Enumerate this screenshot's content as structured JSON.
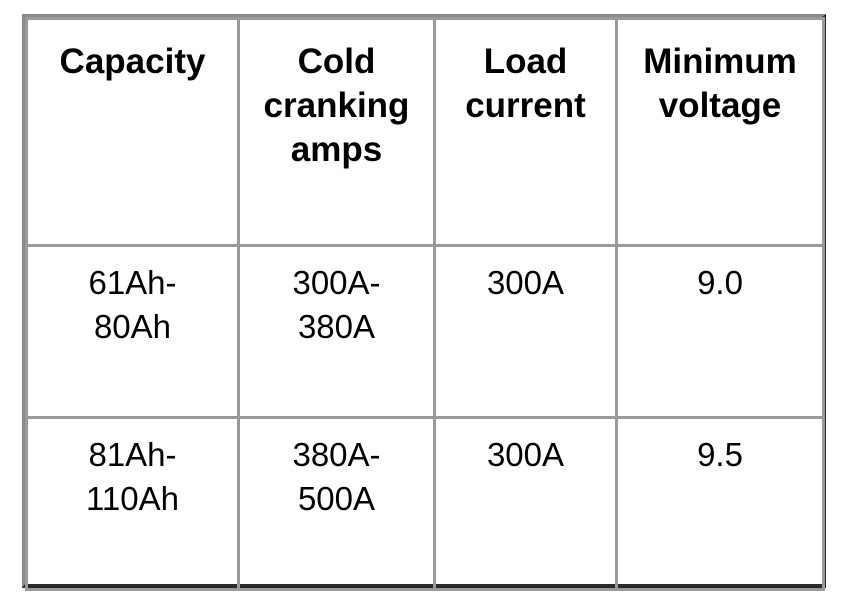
{
  "table": {
    "headers": [
      "Capacity",
      "Cold\ncranking\namps",
      "Load\ncurrent",
      "Minimum\nvoltage"
    ],
    "rows": [
      [
        "61Ah-\n80Ah",
        "300A-\n380A",
        "300A",
        "9.0"
      ],
      [
        "81Ah-\n110Ah",
        "380A-\n500A",
        "300A",
        "9.5"
      ]
    ]
  }
}
